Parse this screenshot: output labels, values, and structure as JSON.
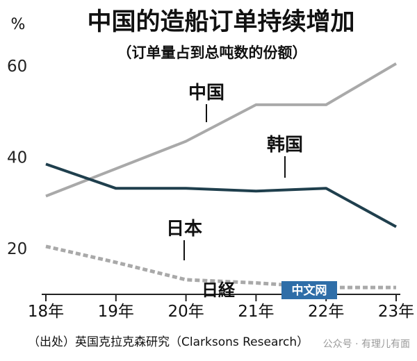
{
  "chart_data": {
    "type": "line",
    "title": "中国的造船订单持续增加",
    "subtitle": "（订单量占到总吨数的份额）",
    "ylabel": "%",
    "x": [
      "18年",
      "19年",
      "20年",
      "21年",
      "22年",
      "23年"
    ],
    "ylim": [
      10,
      65
    ],
    "yticks": [
      20,
      40,
      60
    ],
    "series": [
      {
        "name": "中国",
        "values": [
          31.5,
          37.5,
          43.5,
          51.5,
          51.5,
          60.5
        ],
        "color": "#a9a9a9",
        "style": "solid"
      },
      {
        "name": "韩国",
        "values": [
          38.5,
          33.2,
          33.2,
          32.6,
          33.2,
          24.8
        ],
        "color": "#1f3f4d",
        "style": "solid"
      },
      {
        "name": "日本",
        "values": [
          20.5,
          17.0,
          13.2,
          12.5,
          11.5,
          11.5
        ],
        "color": "#a9a9a9",
        "style": "dashed"
      }
    ],
    "source": "（出处）英国克拉克森研究（Clarksons Research）"
  },
  "branding": {
    "logo_mark": "日経",
    "logo_text": "中文网",
    "watermark": "公众号 · 有理儿有面"
  },
  "colors": {
    "axis": "#222222",
    "logo_bg": "#2f6ea8"
  }
}
